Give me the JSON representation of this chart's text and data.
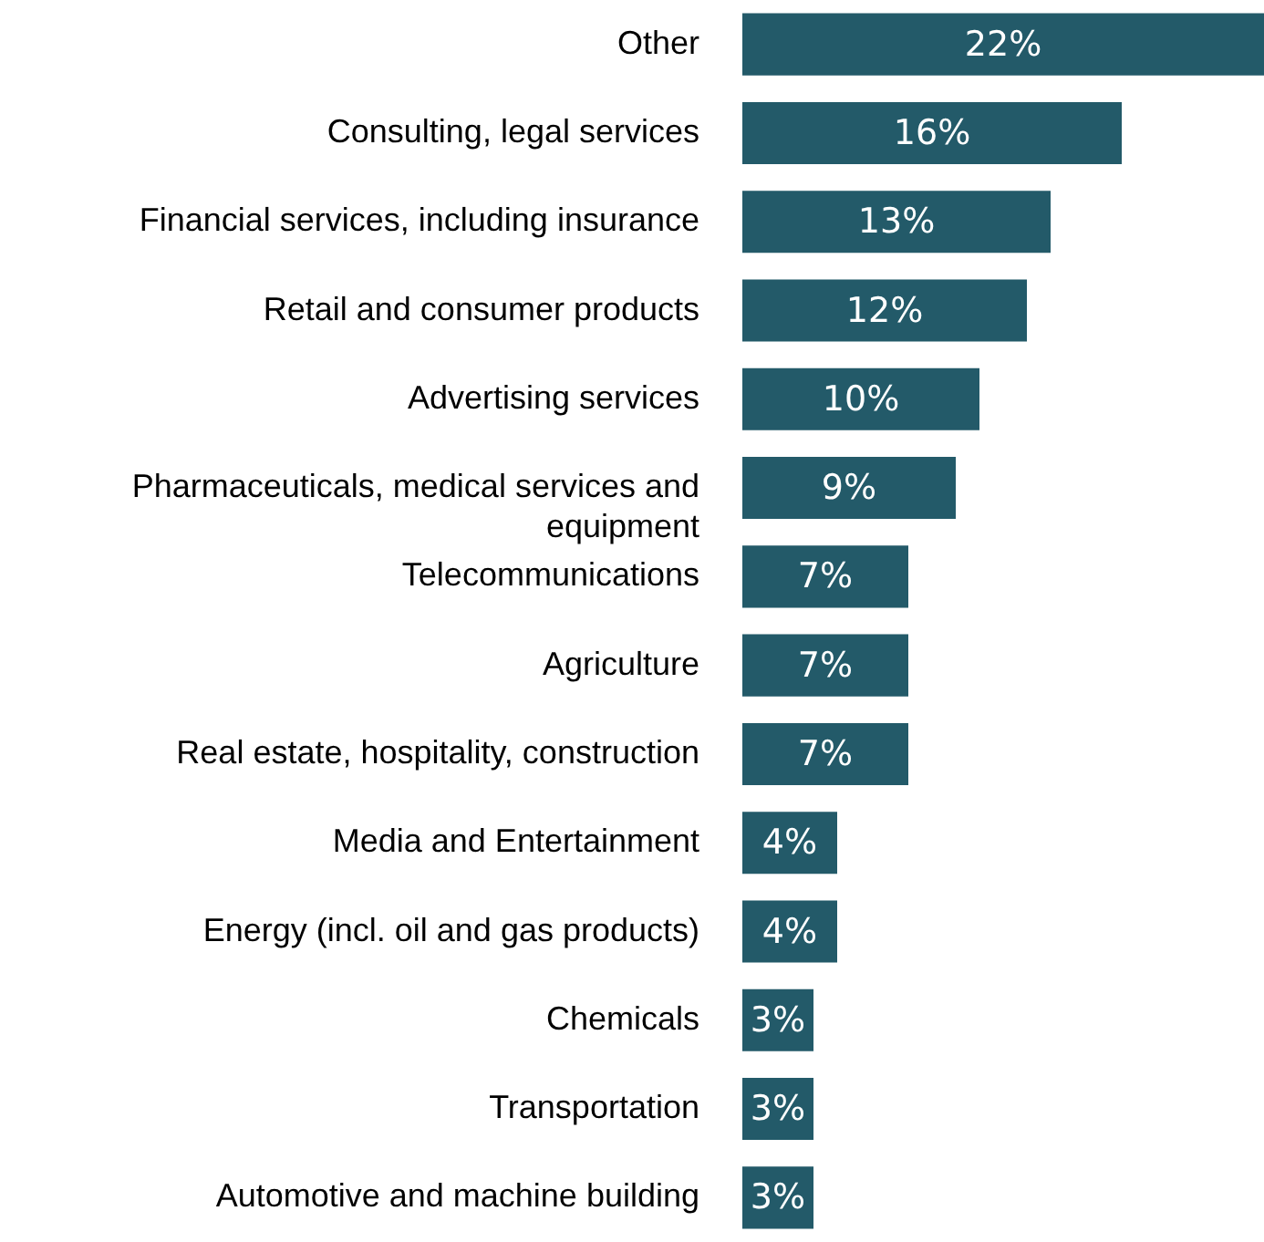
{
  "chart_data": {
    "type": "bar",
    "orientation": "horizontal",
    "categories": [
      "Other",
      "Consulting, legal services",
      "Financial services, including insurance",
      "Retail and consumer products",
      "Advertising services",
      "Pharmaceuticals, medical services and equipment",
      "Telecommunications",
      "Agriculture",
      "Real estate, hospitality, construction",
      "Media and Entertainment",
      "Energy (incl. oil and gas products)",
      "Chemicals",
      "Transportation",
      "Automotive and machine building"
    ],
    "values": [
      22,
      16,
      13,
      12,
      10,
      9,
      7,
      7,
      7,
      4,
      4,
      3,
      3,
      3
    ],
    "value_labels": [
      "22%",
      "16%",
      "13%",
      "12%",
      "10%",
      "9%",
      "7%",
      "7%",
      "7%",
      "4%",
      "4%",
      "3%",
      "3%",
      "3%"
    ],
    "color": "#235a69"
  }
}
